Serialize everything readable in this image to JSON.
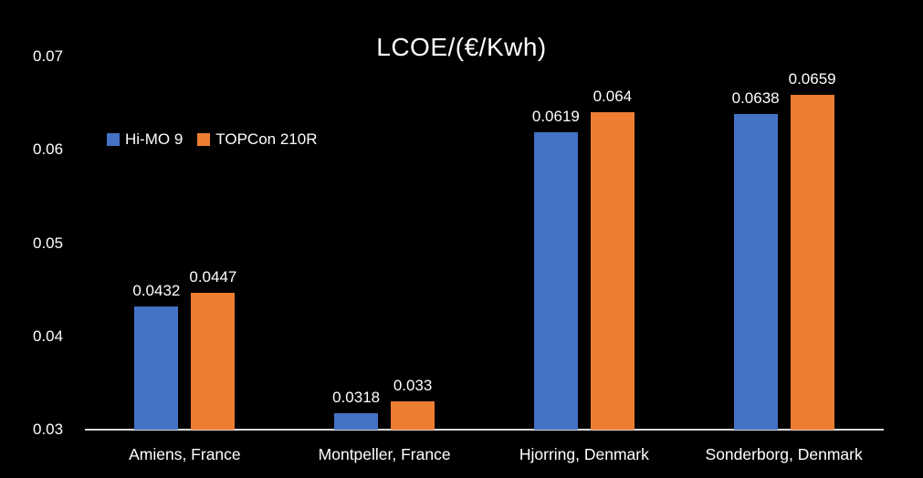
{
  "title": "LCOE/(€/Kwh)",
  "colors": {
    "background": "#000000",
    "text": "#ffffff",
    "axis_line": "#d9d9d9",
    "series1": "#4472C4",
    "series2": "#ED7D31"
  },
  "legend": {
    "items": [
      {
        "label": "Hi-MO 9",
        "color": "#4472C4"
      },
      {
        "label": "TOPCon 210R",
        "color": "#ED7D31"
      }
    ]
  },
  "chart_data": {
    "type": "bar",
    "title": "LCOE/(€/Kwh)",
    "categories": [
      "Amiens, France",
      "Montpeller, France",
      "Hjorring, Denmark",
      "Sonderborg, Denmark"
    ],
    "series": [
      {
        "name": "Hi-MO 9",
        "color": "#4472C4",
        "values": [
          0.0432,
          0.0318,
          0.0619,
          0.0638
        ],
        "labels": [
          "0.0432",
          "0.0318",
          "0.0619",
          "0.0638"
        ]
      },
      {
        "name": "TOPCon 210R",
        "color": "#ED7D31",
        "values": [
          0.0447,
          0.033,
          0.064,
          0.0659
        ],
        "labels": [
          "0.0447",
          "0.033",
          "0.064",
          "0.0659"
        ]
      }
    ],
    "xlabel": "",
    "ylabel": "",
    "ylim": [
      0.03,
      0.07
    ],
    "ytick_values": [
      0.07,
      0.06,
      0.05,
      0.04,
      0.03
    ],
    "ytick_labels": [
      "0.07",
      "0.06",
      "0.05",
      "0.04",
      "0.03"
    ],
    "grid": false,
    "legend_position": "inside-upper-left",
    "data_labels": true
  }
}
